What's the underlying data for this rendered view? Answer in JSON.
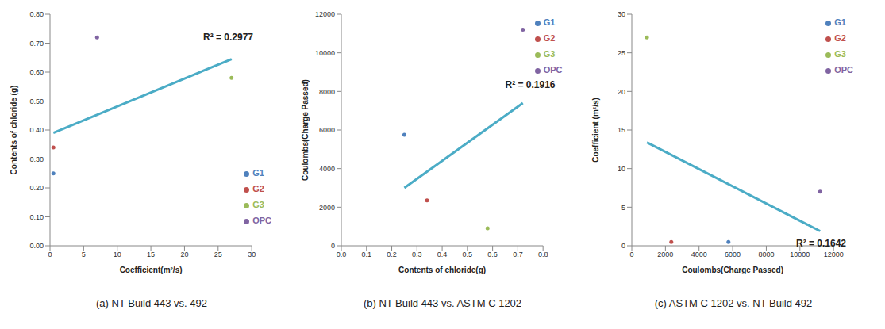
{
  "chart_data": [
    {
      "type": "scatter",
      "title": "(a) NT Build 443 vs. 492",
      "x_label": "Coefficient(m²/s)",
      "y_label": "Contents of chloride (g)",
      "xlim": [
        0,
        30
      ],
      "xticks": [
        0,
        5,
        10,
        15,
        20,
        25,
        30
      ],
      "ylim": [
        0,
        0.8
      ],
      "yticks": [
        {
          "value": 0,
          "label": "0.00"
        },
        {
          "value": 0.1,
          "label": "0.10"
        },
        {
          "value": 0.2,
          "label": "0.20"
        },
        {
          "value": 0.3,
          "label": "0.30"
        },
        {
          "value": 0.4,
          "label": "0.40"
        },
        {
          "value": 0.5,
          "label": "0.50"
        },
        {
          "value": 0.6,
          "label": "0.60"
        },
        {
          "value": 0.7,
          "label": "0.70"
        },
        {
          "value": 0.8,
          "label": "0.80"
        }
      ],
      "legend": "right",
      "series": [
        {
          "name": "G1",
          "color": "#4f81bd",
          "x": [
            0.5
          ],
          "values": [
            0.25
          ]
        },
        {
          "name": "G2",
          "color": "#c0504d",
          "x": [
            0.5
          ],
          "values": [
            0.34
          ]
        },
        {
          "name": "G3",
          "color": "#9bbb59",
          "x": [
            27
          ],
          "values": [
            0.58
          ]
        },
        {
          "name": "OPC",
          "color": "#8064a2",
          "x": [
            7
          ],
          "values": [
            0.72
          ]
        }
      ],
      "trendline": {
        "color": "#4bacc6",
        "x": [
          0.5,
          27
        ],
        "values": [
          0.39,
          0.645
        ]
      },
      "annotations": [
        {
          "text": "R² = 0.2977"
        }
      ]
    },
    {
      "type": "scatter",
      "title": "(b) NT Build 443 vs. ASTM C 1202",
      "x_label": "Contents of chloride(g)",
      "y_label": "Coulombs(Charge Passed)",
      "xlim": [
        0,
        0.8
      ],
      "xticks": [
        {
          "value": 0,
          "label": "0.0"
        },
        0.1,
        0.2,
        0.3,
        0.4,
        0.5,
        0.6,
        0.7,
        0.8
      ],
      "ylim": [
        0,
        12000
      ],
      "yticks": [
        0,
        2000,
        4000,
        6000,
        8000,
        10000,
        12000
      ],
      "legend": "right",
      "series": [
        {
          "name": "G1",
          "color": "#4f81bd",
          "x": [
            0.25
          ],
          "values": [
            5750
          ]
        },
        {
          "name": "G2",
          "color": "#c0504d",
          "x": [
            0.34
          ],
          "values": [
            2350
          ]
        },
        {
          "name": "G3",
          "color": "#9bbb59",
          "x": [
            0.58
          ],
          "values": [
            900
          ]
        },
        {
          "name": "OPC",
          "color": "#8064a2",
          "x": [
            0.72
          ],
          "values": [
            11200
          ]
        }
      ],
      "trendline": {
        "color": "#4bacc6",
        "x": [
          0.25,
          0.72
        ],
        "values": [
          3000,
          7400
        ]
      },
      "annotations": [
        {
          "text": "R² = 0.1916"
        }
      ]
    },
    {
      "type": "scatter",
      "title": "(c) ASTM C 1202 vs. NT Build 492",
      "x_label": "Coulombs(Charge Passed)",
      "y_label": "Coefficient (m²/s)",
      "xlim": [
        0,
        12000
      ],
      "xticks": [
        0,
        2000,
        4000,
        6000,
        8000,
        10000,
        12000
      ],
      "ylim": [
        0,
        30
      ],
      "yticks": [
        0,
        5,
        10,
        15,
        20,
        25,
        30
      ],
      "legend": "right",
      "series": [
        {
          "name": "G1",
          "color": "#4f81bd",
          "x": [
            5750
          ],
          "values": [
            0.5
          ]
        },
        {
          "name": "G2",
          "color": "#c0504d",
          "x": [
            2350
          ],
          "values": [
            0.5
          ]
        },
        {
          "name": "G3",
          "color": "#9bbb59",
          "x": [
            900
          ],
          "values": [
            27
          ]
        },
        {
          "name": "OPC",
          "color": "#8064a2",
          "x": [
            11200
          ],
          "values": [
            7
          ]
        }
      ],
      "trendline": {
        "color": "#4bacc6",
        "x": [
          900,
          11200
        ],
        "values": [
          13.4,
          1.9
        ]
      },
      "annotations": [
        {
          "text": "R² = 0.1642"
        }
      ]
    }
  ]
}
